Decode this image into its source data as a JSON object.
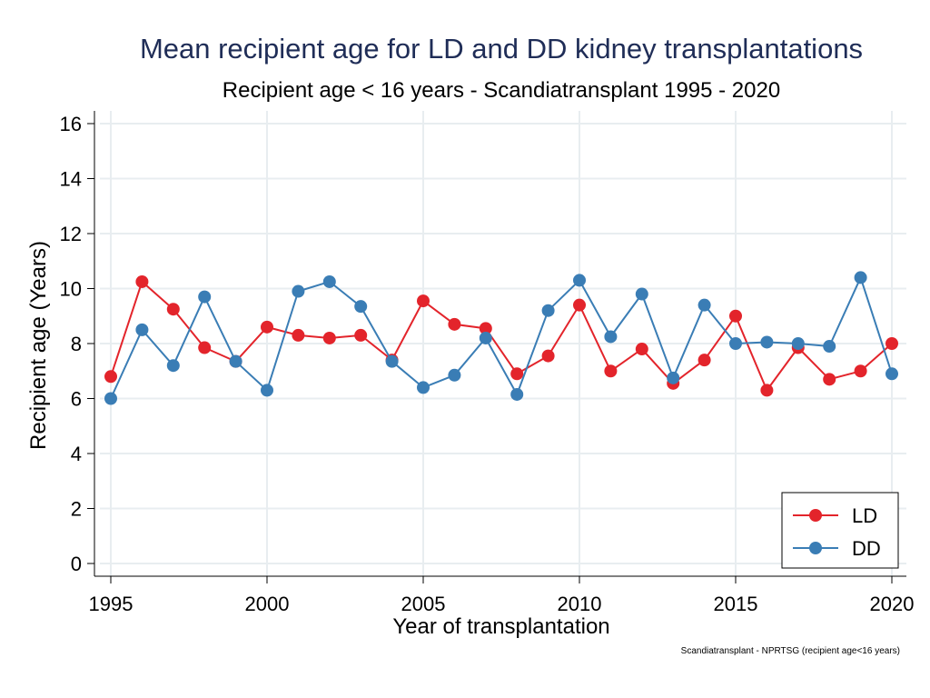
{
  "chart_data": {
    "type": "line",
    "title": "Mean recipient age for LD and DD kidney transplantations",
    "subtitle": "Recipient age < 16 years - Scandiatransplant 1995 - 2020",
    "xlabel": "Year of transplantation",
    "ylabel": "Recipient age (Years)",
    "note": "Scandiatransplant - NPRTSG (recipient age<16 years)",
    "xlim": [
      1995,
      2020
    ],
    "ylim": [
      0,
      16
    ],
    "xticks": [
      1995,
      2000,
      2005,
      2010,
      2015,
      2020
    ],
    "yticks": [
      0,
      2,
      4,
      6,
      8,
      10,
      12,
      14,
      16
    ],
    "grid": true,
    "legend_position": "bottom-right",
    "x": [
      1995,
      1996,
      1997,
      1998,
      1999,
      2000,
      2001,
      2002,
      2003,
      2004,
      2005,
      2006,
      2007,
      2008,
      2009,
      2010,
      2011,
      2012,
      2013,
      2014,
      2015,
      2016,
      2017,
      2018,
      2019,
      2020
    ],
    "series": [
      {
        "name": "LD",
        "color": "#e3242b",
        "values": [
          6.8,
          10.25,
          9.25,
          7.85,
          7.35,
          8.6,
          8.3,
          8.2,
          8.3,
          7.4,
          9.55,
          8.7,
          8.55,
          6.9,
          7.55,
          9.4,
          7.0,
          7.8,
          6.55,
          7.4,
          9.0,
          6.3,
          7.85,
          6.7,
          7.0,
          8.0
        ]
      },
      {
        "name": "DD",
        "color": "#3a7db5",
        "values": [
          6.0,
          8.5,
          7.2,
          9.7,
          7.35,
          6.3,
          9.9,
          10.25,
          9.35,
          7.35,
          6.4,
          6.85,
          8.2,
          6.15,
          9.2,
          10.3,
          8.25,
          9.8,
          6.75,
          9.4,
          8.0,
          8.05,
          8.0,
          7.9,
          10.4,
          6.9
        ]
      }
    ]
  }
}
